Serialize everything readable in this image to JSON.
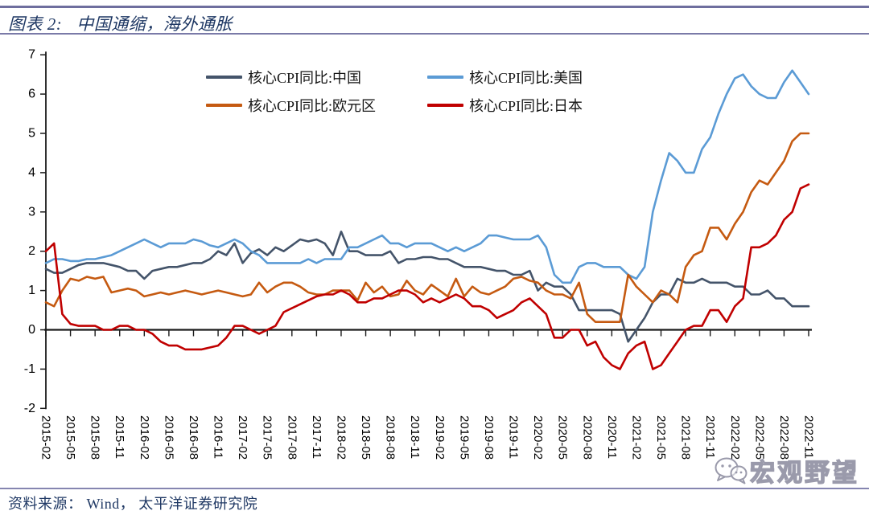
{
  "header": {
    "figure_label": "图表 2:",
    "title": "中国通缩，海外通胀"
  },
  "footer": {
    "source": "资料来源： Wind， 太平洋证券研究院"
  },
  "watermark": {
    "name": "宏观野望",
    "icon": "wechat-icon"
  },
  "colors": {
    "china": "#44546A",
    "us": "#5B9BD5",
    "eurozone": "#C55A11",
    "japan": "#C00000",
    "title": "#1F3864",
    "rule": "#6E6E9E",
    "axis": "#1A1A1A"
  },
  "chart_data": {
    "type": "line",
    "title": "中国通缩，海外通胀",
    "xlabel": "",
    "ylabel": "",
    "ylim": [
      -2,
      7
    ],
    "yticks": [
      -2,
      -1,
      0,
      1,
      2,
      3,
      4,
      5,
      6,
      7
    ],
    "grid": false,
    "legend_position": "top",
    "x_tick_every": 3,
    "x": [
      "2015-02",
      "2015-03",
      "2015-04",
      "2015-05",
      "2015-06",
      "2015-07",
      "2015-08",
      "2015-09",
      "2015-10",
      "2015-11",
      "2015-12",
      "2016-01",
      "2016-02",
      "2016-03",
      "2016-04",
      "2016-05",
      "2016-06",
      "2016-07",
      "2016-08",
      "2016-09",
      "2016-10",
      "2016-11",
      "2016-12",
      "2017-01",
      "2017-02",
      "2017-03",
      "2017-04",
      "2017-05",
      "2017-06",
      "2017-07",
      "2017-08",
      "2017-09",
      "2017-10",
      "2017-11",
      "2017-12",
      "2018-01",
      "2018-02",
      "2018-03",
      "2018-04",
      "2018-05",
      "2018-06",
      "2018-07",
      "2018-08",
      "2018-09",
      "2018-10",
      "2018-11",
      "2018-12",
      "2019-01",
      "2019-02",
      "2019-03",
      "2019-04",
      "2019-05",
      "2019-06",
      "2019-07",
      "2019-08",
      "2019-09",
      "2019-10",
      "2019-11",
      "2019-12",
      "2020-01",
      "2020-02",
      "2020-03",
      "2020-04",
      "2020-05",
      "2020-06",
      "2020-07",
      "2020-08",
      "2020-09",
      "2020-10",
      "2020-11",
      "2020-12",
      "2021-01",
      "2021-02",
      "2021-03",
      "2021-04",
      "2021-05",
      "2021-06",
      "2021-07",
      "2021-08",
      "2021-09",
      "2021-10",
      "2021-11",
      "2021-12",
      "2022-01",
      "2022-02",
      "2022-03",
      "2022-04",
      "2022-05",
      "2022-06",
      "2022-07",
      "2022-08",
      "2022-09",
      "2022-10",
      "2022-11"
    ],
    "series": [
      {
        "name": "核心CPI同比:中国",
        "color_key": "china",
        "values": [
          1.55,
          1.45,
          1.45,
          1.55,
          1.65,
          1.7,
          1.7,
          1.7,
          1.65,
          1.6,
          1.5,
          1.5,
          1.3,
          1.5,
          1.55,
          1.6,
          1.6,
          1.65,
          1.7,
          1.7,
          1.8,
          2.0,
          1.9,
          2.2,
          1.7,
          1.95,
          2.05,
          1.9,
          2.1,
          2.0,
          2.15,
          2.3,
          2.25,
          2.3,
          2.2,
          1.9,
          2.5,
          2.0,
          2.0,
          1.9,
          1.9,
          1.9,
          2.0,
          1.7,
          1.8,
          1.8,
          1.85,
          1.85,
          1.8,
          1.8,
          1.7,
          1.6,
          1.6,
          1.6,
          1.55,
          1.5,
          1.5,
          1.4,
          1.4,
          1.5,
          1.0,
          1.2,
          1.1,
          1.1,
          0.9,
          0.5,
          0.5,
          0.5,
          0.5,
          0.5,
          0.4,
          -0.3,
          0.0,
          0.3,
          0.7,
          0.9,
          0.9,
          1.3,
          1.2,
          1.2,
          1.3,
          1.2,
          1.2,
          1.2,
          1.1,
          1.1,
          0.9,
          0.9,
          1.0,
          0.8,
          0.8,
          0.6,
          0.6,
          0.6
        ]
      },
      {
        "name": "核心CPI同比:美国",
        "color_key": "us",
        "values": [
          1.7,
          1.8,
          1.8,
          1.75,
          1.75,
          1.8,
          1.8,
          1.85,
          1.9,
          2.0,
          2.1,
          2.2,
          2.3,
          2.2,
          2.1,
          2.2,
          2.2,
          2.2,
          2.3,
          2.25,
          2.15,
          2.1,
          2.2,
          2.3,
          2.2,
          2.0,
          1.9,
          1.7,
          1.7,
          1.7,
          1.7,
          1.7,
          1.8,
          1.7,
          1.8,
          1.8,
          1.8,
          2.1,
          2.1,
          2.2,
          2.3,
          2.4,
          2.2,
          2.2,
          2.1,
          2.2,
          2.2,
          2.2,
          2.1,
          2.0,
          2.1,
          2.0,
          2.1,
          2.2,
          2.4,
          2.4,
          2.35,
          2.3,
          2.3,
          2.3,
          2.4,
          2.1,
          1.4,
          1.2,
          1.2,
          1.6,
          1.7,
          1.7,
          1.6,
          1.6,
          1.6,
          1.4,
          1.3,
          1.6,
          3.0,
          3.8,
          4.5,
          4.3,
          4.0,
          4.0,
          4.6,
          4.9,
          5.5,
          6.0,
          6.4,
          6.5,
          6.2,
          6.0,
          5.9,
          5.9,
          6.3,
          6.6,
          6.3,
          6.0
        ]
      },
      {
        "name": "核心CPI同比:欧元区",
        "color_key": "eurozone",
        "values": [
          0.7,
          0.6,
          1.0,
          1.3,
          1.25,
          1.35,
          1.3,
          1.35,
          0.95,
          1.0,
          1.05,
          1.0,
          0.85,
          0.9,
          0.95,
          0.9,
          0.95,
          1.0,
          0.95,
          0.9,
          0.95,
          1.0,
          0.95,
          0.9,
          0.85,
          0.9,
          1.2,
          0.95,
          1.1,
          1.2,
          1.2,
          1.1,
          0.95,
          0.9,
          0.9,
          1.0,
          1.0,
          1.0,
          0.75,
          1.2,
          0.95,
          1.1,
          0.85,
          0.9,
          1.25,
          1.0,
          0.9,
          1.15,
          1.0,
          0.85,
          1.3,
          0.85,
          1.1,
          0.95,
          0.9,
          1.0,
          1.1,
          1.3,
          1.35,
          1.25,
          1.2,
          1.0,
          0.9,
          0.9,
          0.8,
          1.2,
          0.4,
          0.2,
          0.2,
          0.2,
          0.2,
          1.4,
          1.1,
          0.9,
          0.7,
          1.0,
          0.9,
          0.7,
          1.6,
          1.9,
          2.0,
          2.6,
          2.6,
          2.3,
          2.7,
          3.0,
          3.5,
          3.8,
          3.7,
          4.0,
          4.3,
          4.8,
          5.0,
          5.0
        ]
      },
      {
        "name": "核心CPI同比:日本",
        "color_key": "japan",
        "values": [
          2.0,
          2.2,
          0.4,
          0.15,
          0.1,
          0.1,
          0.1,
          0.0,
          0.0,
          0.1,
          0.1,
          0.0,
          0.0,
          -0.1,
          -0.3,
          -0.4,
          -0.4,
          -0.5,
          -0.5,
          -0.5,
          -0.45,
          -0.4,
          -0.2,
          0.1,
          0.1,
          0.0,
          -0.1,
          0.0,
          0.1,
          0.45,
          0.55,
          0.65,
          0.75,
          0.85,
          0.9,
          0.9,
          1.0,
          0.9,
          0.7,
          0.7,
          0.8,
          0.8,
          0.9,
          1.0,
          1.0,
          0.9,
          0.7,
          0.8,
          0.7,
          0.8,
          0.9,
          0.8,
          0.6,
          0.6,
          0.5,
          0.3,
          0.4,
          0.5,
          0.7,
          0.8,
          0.6,
          0.4,
          -0.2,
          -0.2,
          0.0,
          0.0,
          -0.4,
          -0.3,
          -0.7,
          -0.9,
          -1.0,
          -0.6,
          -0.4,
          -0.3,
          -1.0,
          -0.9,
          -0.6,
          -0.3,
          0.0,
          0.1,
          0.1,
          0.5,
          0.5,
          0.2,
          0.6,
          0.8,
          2.1,
          2.1,
          2.2,
          2.4,
          2.8,
          3.0,
          3.6,
          3.7
        ]
      }
    ]
  }
}
